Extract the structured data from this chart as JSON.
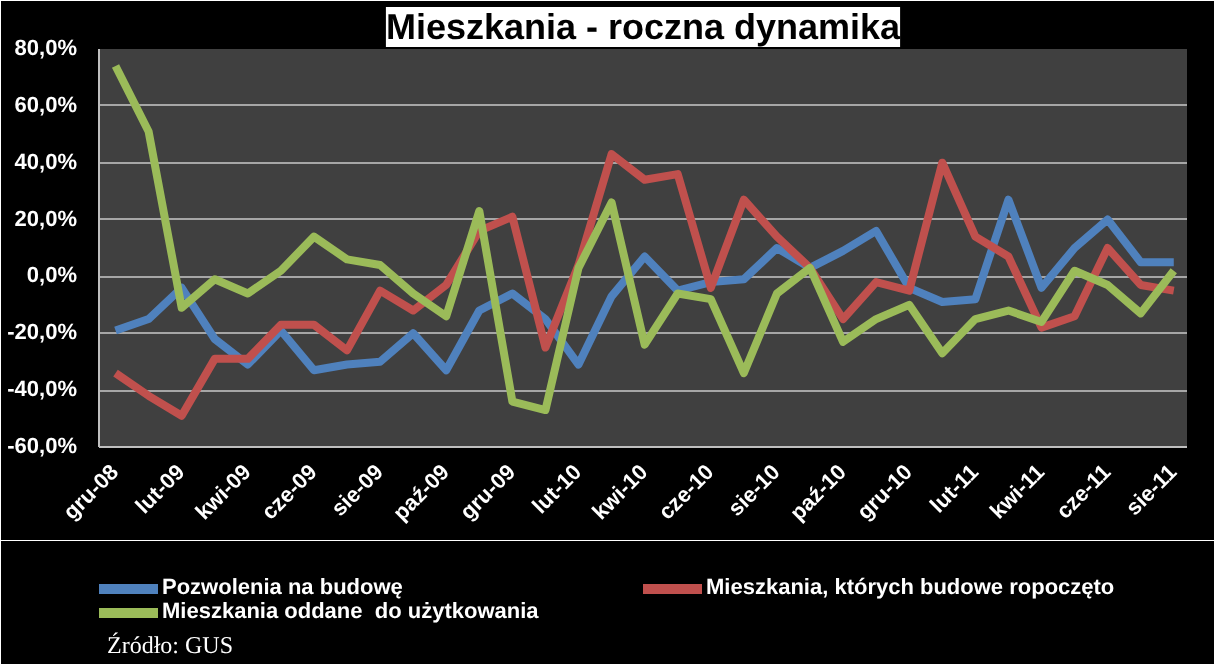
{
  "chart_data": {
    "type": "line",
    "title": "Mieszkania - roczna dynamika",
    "categories": [
      "gru-08",
      null,
      "lut-09",
      null,
      "kwi-09",
      null,
      "cze-09",
      null,
      "sie-09",
      null,
      "paź-09",
      null,
      "gru-09",
      null,
      "lut-10",
      null,
      "kwi-10",
      null,
      "cze-10",
      null,
      "sie-10",
      null,
      "paź-10",
      null,
      "gru-10",
      null,
      "lut-11",
      null,
      "kwi-11",
      null,
      "cze-11",
      null,
      "sie-11"
    ],
    "series": [
      {
        "name": "Pozwolenia na budowę",
        "color": "#4f81bd",
        "values": [
          -19,
          -15,
          -4,
          -22,
          -31,
          -19,
          -33,
          -31,
          -30,
          -20,
          -33,
          -12,
          -6,
          -15,
          -31,
          -7,
          7,
          -5,
          -2,
          -1,
          10,
          3,
          9,
          16,
          -4,
          -9,
          -8,
          27,
          -4,
          10,
          20,
          5,
          5
        ]
      },
      {
        "name": "Mieszkania, których budowe ropoczęto",
        "color": "#c0504d",
        "values": [
          -34,
          -42,
          -49,
          -29,
          -29,
          -17,
          -17,
          -26,
          -5,
          -12,
          -3,
          16,
          21,
          -25,
          4,
          43,
          34,
          36,
          -4,
          27,
          14,
          3,
          -15,
          -2,
          -5,
          40,
          14,
          7,
          -18,
          -14,
          10,
          -3,
          -5
        ]
      },
      {
        "name": "Mieszkania oddane  do użytkowania",
        "color": "#9bbb59",
        "values": [
          74,
          51,
          -11,
          -1,
          -6,
          2,
          14,
          6,
          4,
          -6,
          -14,
          23,
          -44,
          -47,
          3,
          26,
          -24,
          -6,
          -8,
          -34,
          -6,
          3,
          -23,
          -15,
          -10,
          -27,
          -15,
          -12,
          -16,
          2,
          -3,
          -13,
          2
        ]
      }
    ],
    "ylim": [
      -60,
      80
    ],
    "yticks": [
      {
        "value": -60,
        "label": "-60,0%"
      },
      {
        "value": -40,
        "label": "-40,0%"
      },
      {
        "value": -20,
        "label": "-20,0%"
      },
      {
        "value": 0,
        "label": "0,0%"
      },
      {
        "value": 20,
        "label": "20,0%"
      },
      {
        "value": 40,
        "label": "40,0%"
      },
      {
        "value": 60,
        "label": "60,0%"
      },
      {
        "value": 80,
        "label": "80,0%"
      }
    ],
    "grid": "y",
    "legend": "bottom",
    "annotations": [
      "Źródło: GUS"
    ]
  }
}
